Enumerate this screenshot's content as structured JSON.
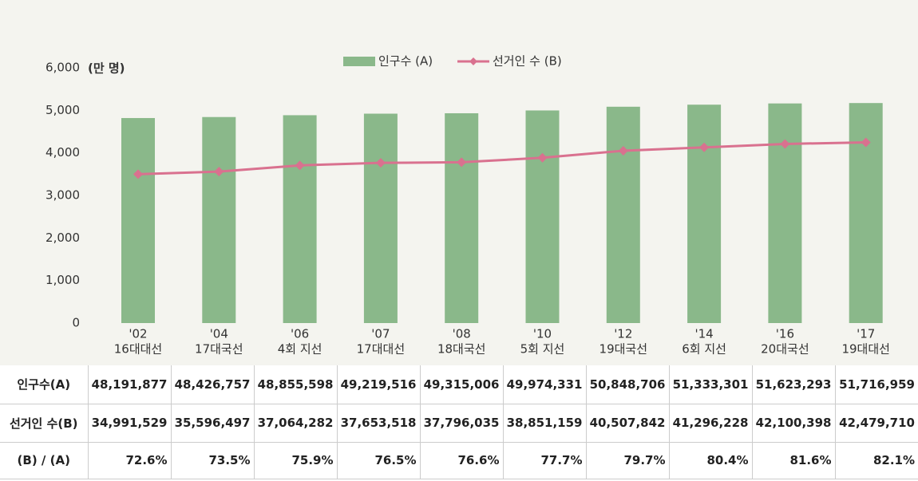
{
  "chart_data": {
    "type": "bar_line",
    "y_label": "(만 명)",
    "categories": [
      "'02",
      "'04",
      "'06",
      "'07",
      "'08",
      "'10",
      "'12",
      "'14",
      "'16",
      "'17"
    ],
    "category_sublabels": [
      "16대대선",
      "17대국선",
      "4회 지선",
      "17대대선",
      "18대국선",
      "5회 지선",
      "19대국선",
      "6회 지선",
      "20대국선",
      "19대대선"
    ],
    "series": [
      {
        "name": "인구수 (A)",
        "kind": "bar",
        "color": "#8ab88a",
        "values": [
          4819.1877,
          4842.6757,
          4885.5598,
          4921.9516,
          4931.5006,
          4997.4331,
          5084.8706,
          5133.3301,
          5162.3293,
          5171.6959
        ]
      },
      {
        "name": "선거인 수 (B)",
        "kind": "line",
        "color": "#d9718f",
        "values": [
          3499.1529,
          3559.6497,
          3706.4282,
          3765.3518,
          3779.6035,
          3885.1159,
          4050.7842,
          4129.6228,
          4210.0398,
          4247.971
        ]
      }
    ],
    "ylim": [
      0,
      6000
    ],
    "yticks": [
      0,
      {
        "value": 1000,
        "label": "1,000"
      },
      {
        "value": 2000,
        "label": "2,000"
      },
      {
        "value": 3000,
        "label": "3,000"
      },
      {
        "value": 4000,
        "label": "4,000"
      },
      {
        "value": 5000,
        "label": "5,000"
      },
      {
        "value": 6000,
        "label": "6,000"
      }
    ]
  },
  "table": {
    "row_headers": [
      "인구수(A)",
      "선거인 수(B)",
      "(B)  /  (A)"
    ],
    "rows": [
      [
        "48,191,877",
        "48,426,757",
        "48,855,598",
        "49,219,516",
        "49,315,006",
        "49,974,331",
        "50,848,706",
        "51,333,301",
        "51,623,293",
        "51,716,959"
      ],
      [
        "34,991,529",
        "35,596,497",
        "37,064,282",
        "37,653,518",
        "37,796,035",
        "38,851,159",
        "40,507,842",
        "41,296,228",
        "42,100,398",
        "42,479,710"
      ],
      [
        "72.6%",
        "73.5%",
        "75.9%",
        "76.5%",
        "76.6%",
        "77.7%",
        "79.7%",
        "80.4%",
        "81.6%",
        "82.1%"
      ]
    ]
  }
}
